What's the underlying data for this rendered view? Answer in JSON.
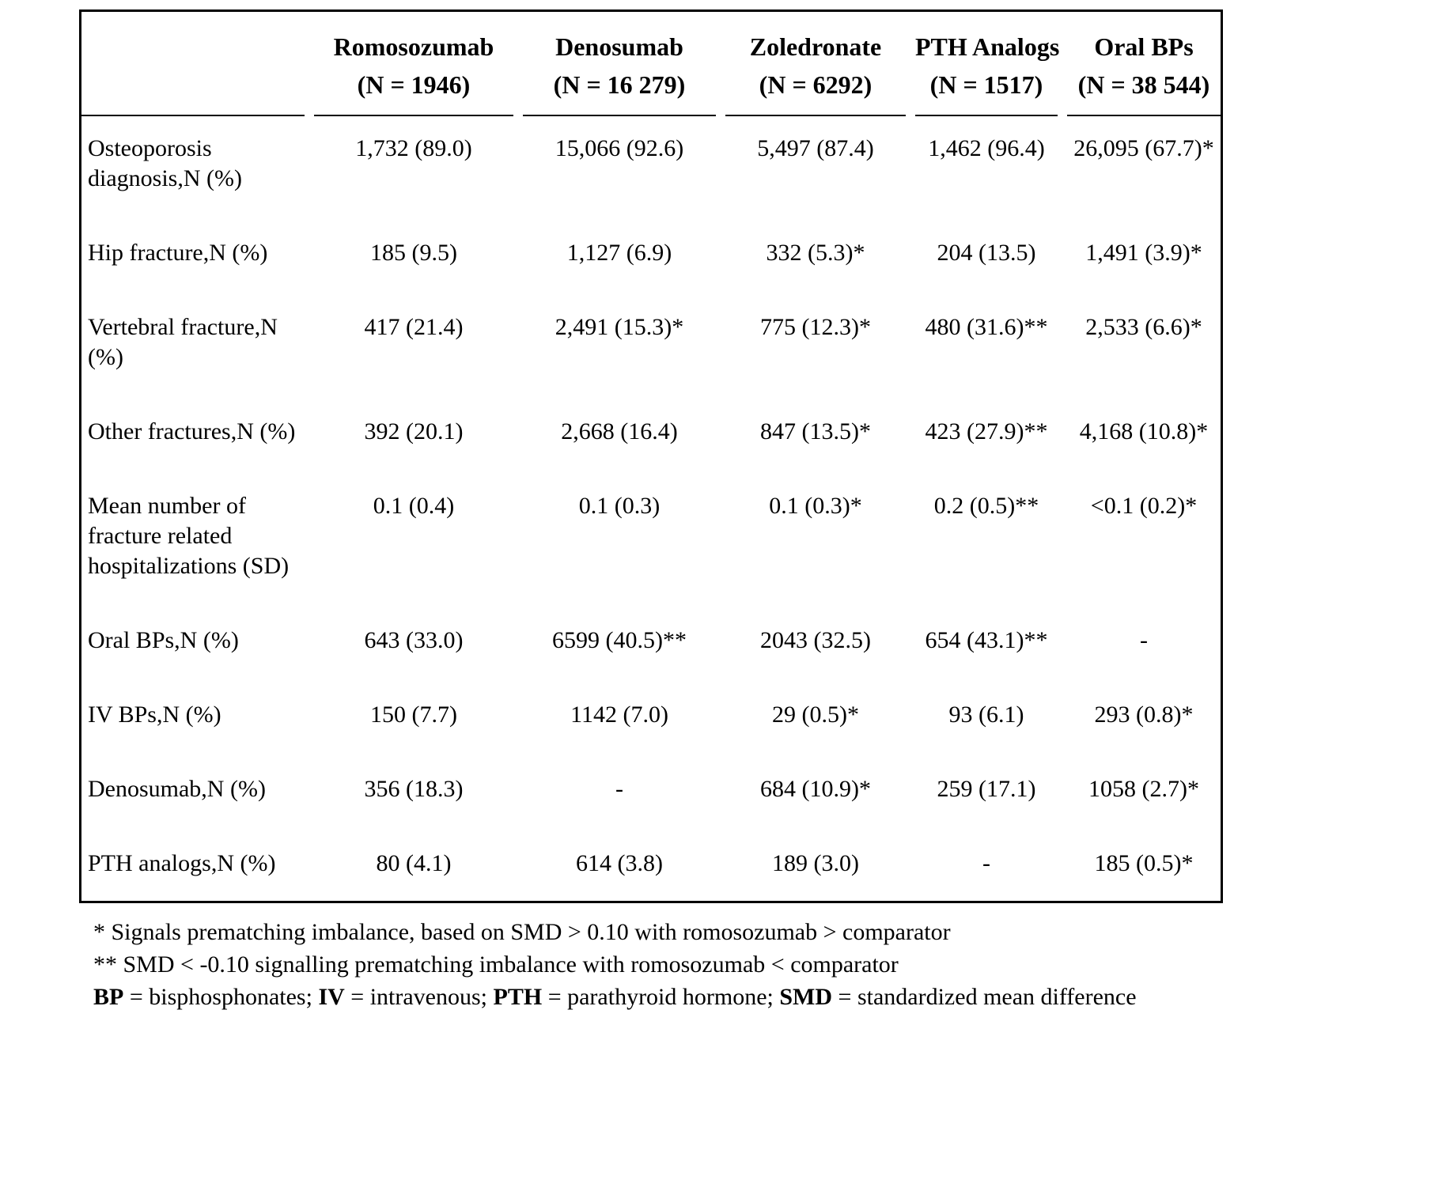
{
  "colors": {
    "text": "#000000",
    "background": "#ffffff",
    "border": "#000000"
  },
  "table": {
    "columns": [
      {
        "name": "Romosozumab",
        "n": "(N = 1946)"
      },
      {
        "name": "Denosumab",
        "n": "(N = 16 279)"
      },
      {
        "name": "Zoledronate",
        "n": "(N = 6292)"
      },
      {
        "name": "PTH Analogs",
        "n": "(N = 1517)"
      },
      {
        "name": "Oral BPs",
        "n": "(N = 38 544)"
      }
    ],
    "rows": [
      {
        "label": "Osteoporosis diagnosis,N (%)",
        "values": [
          "1,732 (89.0)",
          "15,066 (92.6)",
          "5,497 (87.4)",
          "1,462 (96.4)",
          "26,095 (67.7)*"
        ]
      },
      {
        "label": "Hip fracture,N (%)",
        "values": [
          "185 (9.5)",
          "1,127 (6.9)",
          "332 (5.3)*",
          "204 (13.5)",
          "1,491 (3.9)*"
        ]
      },
      {
        "label": "Vertebral fracture,N (%)",
        "values": [
          "417 (21.4)",
          "2,491 (15.3)*",
          "775 (12.3)*",
          "480 (31.6)**",
          "2,533 (6.6)*"
        ]
      },
      {
        "label": "Other fractures,N (%)",
        "values": [
          "392 (20.1)",
          "2,668 (16.4)",
          "847 (13.5)*",
          "423 (27.9)**",
          "4,168 (10.8)*"
        ]
      },
      {
        "label": "Mean number of fracture related hospitalizations (SD)",
        "values": [
          "0.1 (0.4)",
          "0.1 (0.3)",
          "0.1 (0.3)*",
          "0.2 (0.5)**",
          "<0.1 (0.2)*"
        ]
      },
      {
        "label": "Oral BPs,N (%)",
        "values": [
          "643 (33.0)",
          "6599 (40.5)**",
          "2043 (32.5)",
          "654 (43.1)**",
          "-"
        ]
      },
      {
        "label": "IV BPs,N (%)",
        "values": [
          "150 (7.7)",
          "1142 (7.0)",
          "29 (0.5)*",
          "93 (6.1)",
          "293 (0.8)*"
        ]
      },
      {
        "label": "Denosumab,N (%)",
        "values": [
          "356 (18.3)",
          "-",
          "684 (10.9)*",
          "259 (17.1)",
          "1058 (2.7)*"
        ]
      },
      {
        "label": "PTH analogs,N (%)",
        "values": [
          "80 (4.1)",
          "614 (3.8)",
          "189 (3.0)",
          "-",
          "185 (0.5)*"
        ]
      }
    ]
  },
  "footnotes": [
    {
      "segments": [
        {
          "text": "* Signals prematching imbalance, based on SMD > 0.10 with romosozumab > comparator",
          "bold": false
        }
      ]
    },
    {
      "segments": [
        {
          "text": "** SMD < -0.10 signalling prematching imbalance with romosozumab < comparator",
          "bold": false
        }
      ]
    },
    {
      "segments": [
        {
          "text": "BP",
          "bold": true
        },
        {
          "text": " = bisphosphonates; ",
          "bold": false
        },
        {
          "text": "IV",
          "bold": true
        },
        {
          "text": " = intravenous; ",
          "bold": false
        },
        {
          "text": "PTH",
          "bold": true
        },
        {
          "text": " = parathyroid hormone; ",
          "bold": false
        },
        {
          "text": "SMD",
          "bold": true
        },
        {
          "text": " = standardized mean difference",
          "bold": false
        }
      ]
    }
  ]
}
